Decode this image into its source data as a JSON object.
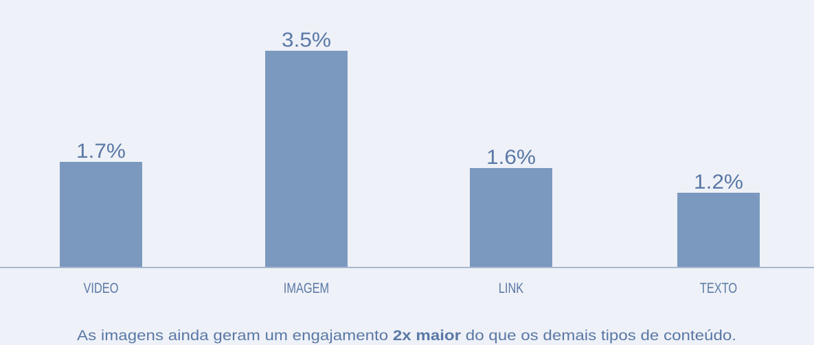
{
  "chart_data": {
    "type": "bar",
    "categories": [
      "VIDEO",
      "IMAGEM",
      "LINK",
      "TEXTO"
    ],
    "values": [
      1.7,
      3.5,
      1.6,
      1.2
    ],
    "value_labels": [
      "1.7%",
      "3.5%",
      "1.6%",
      "1.2%"
    ],
    "color": "#7b99be",
    "caption": [
      "As imagens ainda geram um engajamento",
      "2x maior",
      "do que os demais tipos de conteúdo."
    ]
  }
}
